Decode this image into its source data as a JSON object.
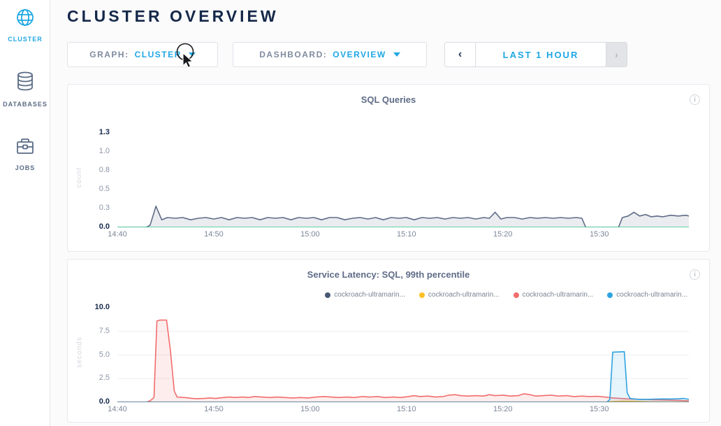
{
  "sidebar": {
    "items": [
      {
        "label": "CLUSTER",
        "icon": "globe-icon",
        "active": true
      },
      {
        "label": "DATABASES",
        "icon": "database-icon",
        "active": false
      },
      {
        "label": "JOBS",
        "icon": "briefcase-icon",
        "active": false
      }
    ]
  },
  "header": {
    "title": "CLUSTER OVERVIEW"
  },
  "controls": {
    "graph": {
      "label": "GRAPH:",
      "value": "CLUSTER"
    },
    "dashboard": {
      "label": "DASHBOARD:",
      "value": "OVERVIEW"
    },
    "timerange": {
      "prev": "‹",
      "label": "LAST 1 HOUR",
      "next": "›",
      "next_disabled": true
    }
  },
  "colors": {
    "accent_blue": "#1ea7e5",
    "navy": "#152849",
    "label_gray": "#7f8b9e",
    "panel_border": "#e7e9ed",
    "chart1_line": "#5f6c87",
    "chart1_zero_line": "#35c98e",
    "chart2_zero_line": "#5b7f9d",
    "series_slate": "#475872",
    "series_yellow": "#fdc028",
    "series_red": "#f26d6d",
    "series_blue": "#2fa3e0"
  },
  "chart_data": [
    {
      "type": "area",
      "title": "SQL Queries",
      "ylabel": "count",
      "xlim": [
        0,
        59.3
      ],
      "ylim": [
        0,
        1.25
      ],
      "grid": false,
      "zero_line_color": "#35c98e",
      "x_ticks": [
        {
          "value": 0,
          "label": "14:40"
        },
        {
          "value": 10,
          "label": "14:50"
        },
        {
          "value": 20,
          "label": "15:00"
        },
        {
          "value": 30,
          "label": "15:10"
        },
        {
          "value": 40,
          "label": "15:20"
        },
        {
          "value": 50,
          "label": "15:30"
        }
      ],
      "y_ticks": [
        {
          "value": 0,
          "label": "0.0",
          "bold": true
        },
        {
          "value": 0.25,
          "label": "0.3",
          "bold": false
        },
        {
          "value": 0.5,
          "label": "0.5",
          "bold": false
        },
        {
          "value": 0.75,
          "label": "0.8",
          "bold": false
        },
        {
          "value": 1.0,
          "label": "1.0",
          "bold": false
        },
        {
          "value": 1.25,
          "label": "1.3",
          "bold": true
        }
      ],
      "series": [
        {
          "color": "#5f6c87",
          "fill": "rgba(95,108,135,0.13)",
          "points": [
            [
              0,
              0
            ],
            [
              3,
              0
            ],
            [
              3.4,
              0.03
            ],
            [
              4,
              0.28
            ],
            [
              4.6,
              0.1
            ],
            [
              5.2,
              0.13
            ],
            [
              6,
              0.12
            ],
            [
              6.8,
              0.13
            ],
            [
              7.6,
              0.1
            ],
            [
              8.4,
              0.12
            ],
            [
              9.2,
              0.13
            ],
            [
              10,
              0.11
            ],
            [
              10.8,
              0.13
            ],
            [
              11.6,
              0.1
            ],
            [
              12.4,
              0.13
            ],
            [
              13.2,
              0.12
            ],
            [
              14,
              0.13
            ],
            [
              14.8,
              0.1
            ],
            [
              15.6,
              0.13
            ],
            [
              16.4,
              0.12
            ],
            [
              17.2,
              0.13
            ],
            [
              18,
              0.1
            ],
            [
              18.8,
              0.13
            ],
            [
              19.6,
              0.12
            ],
            [
              20.4,
              0.13
            ],
            [
              21.2,
              0.1
            ],
            [
              22,
              0.13
            ],
            [
              22.8,
              0.13
            ],
            [
              23.6,
              0.1
            ],
            [
              24.4,
              0.12
            ],
            [
              25.2,
              0.13
            ],
            [
              26,
              0.11
            ],
            [
              26.8,
              0.13
            ],
            [
              27.6,
              0.1
            ],
            [
              28.4,
              0.13
            ],
            [
              29.2,
              0.12
            ],
            [
              30,
              0.13
            ],
            [
              30.8,
              0.1
            ],
            [
              31.6,
              0.13
            ],
            [
              32.4,
              0.12
            ],
            [
              33.2,
              0.13
            ],
            [
              34,
              0.11
            ],
            [
              34.8,
              0.13
            ],
            [
              35.6,
              0.12
            ],
            [
              36.4,
              0.13
            ],
            [
              37.2,
              0.11
            ],
            [
              38,
              0.13
            ],
            [
              38.6,
              0.12
            ],
            [
              39.2,
              0.2
            ],
            [
              39.8,
              0.11
            ],
            [
              40.4,
              0.13
            ],
            [
              41.2,
              0.13
            ],
            [
              42,
              0.11
            ],
            [
              42.8,
              0.13
            ],
            [
              43.6,
              0.12
            ],
            [
              44.4,
              0.13
            ],
            [
              45.2,
              0.12
            ],
            [
              46,
              0.13
            ],
            [
              46.8,
              0.12
            ],
            [
              47.6,
              0.13
            ],
            [
              48.2,
              0.12
            ],
            [
              48.6,
              0
            ],
            [
              52,
              0
            ],
            [
              52.4,
              0.13
            ],
            [
              53,
              0.15
            ],
            [
              53.6,
              0.2
            ],
            [
              54.2,
              0.15
            ],
            [
              54.8,
              0.17
            ],
            [
              55.4,
              0.14
            ],
            [
              56,
              0.15
            ],
            [
              56.6,
              0.14
            ],
            [
              57.4,
              0.16
            ],
            [
              58.2,
              0.15
            ],
            [
              59,
              0.16
            ],
            [
              59.3,
              0.15
            ]
          ]
        }
      ]
    },
    {
      "type": "area",
      "title": "Service Latency: SQL, 99th percentile",
      "ylabel": "seconds",
      "xlim": [
        0,
        59.3
      ],
      "ylim": [
        0,
        10
      ],
      "grid": true,
      "zero_line_color": "#5b7f9d",
      "legend": [
        {
          "label": "cockroach-ultramarin...",
          "color": "#475872"
        },
        {
          "label": "cockroach-ultramarin...",
          "color": "#fdc028"
        },
        {
          "label": "cockroach-ultramarin...",
          "color": "#f26d6d"
        },
        {
          "label": "cockroach-ultramarin...",
          "color": "#2fa3e0"
        }
      ],
      "x_ticks": [
        {
          "value": 0,
          "label": "14:40"
        },
        {
          "value": 10,
          "label": "14:50"
        },
        {
          "value": 20,
          "label": "15:00"
        },
        {
          "value": 30,
          "label": "15:10"
        },
        {
          "value": 40,
          "label": "15:20"
        },
        {
          "value": 50,
          "label": "15:30"
        }
      ],
      "y_ticks": [
        {
          "value": 0,
          "label": "0.0",
          "bold": true
        },
        {
          "value": 2.5,
          "label": "2.5",
          "bold": false
        },
        {
          "value": 5.0,
          "label": "5.0",
          "bold": false
        },
        {
          "value": 7.5,
          "label": "7.5",
          "bold": false
        },
        {
          "value": 10.0,
          "label": "10.0",
          "bold": true
        }
      ],
      "series": [
        {
          "name": "cockroach-ultramarin...",
          "color": "#475872",
          "fill": "rgba(71,88,114,0.0)",
          "points": [
            [
              0,
              0
            ],
            [
              59.3,
              0
            ]
          ]
        },
        {
          "name": "cockroach-ultramarin...",
          "color": "#fdc028",
          "fill": "rgba(253,192,40,0.12)",
          "points": [
            [
              0,
              0
            ],
            [
              50.5,
              0
            ],
            [
              51.5,
              0.08
            ],
            [
              52.5,
              0.12
            ],
            [
              53.5,
              0.1
            ],
            [
              54.5,
              0.07
            ],
            [
              55.5,
              0.04
            ],
            [
              56.5,
              0.02
            ],
            [
              59.3,
              0.02
            ]
          ]
        },
        {
          "name": "cockroach-ultramarin...",
          "color": "#f26d6d",
          "fill": "rgba(242,109,109,0.12)",
          "points": [
            [
              0,
              0
            ],
            [
              3,
              0
            ],
            [
              3.4,
              0.15
            ],
            [
              3.8,
              0.5
            ],
            [
              4.1,
              8.6
            ],
            [
              4.4,
              8.7
            ],
            [
              5.1,
              8.7
            ],
            [
              5.5,
              5.5
            ],
            [
              5.9,
              1.2
            ],
            [
              6.2,
              0.55
            ],
            [
              7,
              0.5
            ],
            [
              7.6,
              0.42
            ],
            [
              8.2,
              0.38
            ],
            [
              9,
              0.4
            ],
            [
              9.6,
              0.45
            ],
            [
              10.2,
              0.4
            ],
            [
              11,
              0.5
            ],
            [
              11.6,
              0.55
            ],
            [
              12.2,
              0.5
            ],
            [
              13,
              0.55
            ],
            [
              13.6,
              0.5
            ],
            [
              14.2,
              0.6
            ],
            [
              15,
              0.55
            ],
            [
              15.8,
              0.5
            ],
            [
              16.6,
              0.55
            ],
            [
              17.4,
              0.5
            ],
            [
              18.2,
              0.45
            ],
            [
              19,
              0.5
            ],
            [
              19.8,
              0.45
            ],
            [
              20.6,
              0.55
            ],
            [
              21.4,
              0.6
            ],
            [
              22.2,
              0.55
            ],
            [
              23,
              0.5
            ],
            [
              23.8,
              0.55
            ],
            [
              24.6,
              0.5
            ],
            [
              25.4,
              0.6
            ],
            [
              26.2,
              0.55
            ],
            [
              27,
              0.6
            ],
            [
              27.8,
              0.5
            ],
            [
              28.6,
              0.55
            ],
            [
              29.4,
              0.5
            ],
            [
              30.2,
              0.6
            ],
            [
              30.8,
              0.7
            ],
            [
              31.4,
              0.6
            ],
            [
              32.2,
              0.65
            ],
            [
              33,
              0.55
            ],
            [
              33.8,
              0.6
            ],
            [
              34.4,
              0.75
            ],
            [
              35,
              0.8
            ],
            [
              35.6,
              0.7
            ],
            [
              36.4,
              0.65
            ],
            [
              37.2,
              0.7
            ],
            [
              38,
              0.65
            ],
            [
              38.6,
              0.8
            ],
            [
              39.2,
              0.7
            ],
            [
              40,
              0.75
            ],
            [
              40.8,
              0.65
            ],
            [
              41.6,
              0.7
            ],
            [
              42.2,
              0.9
            ],
            [
              42.8,
              0.8
            ],
            [
              43.4,
              0.65
            ],
            [
              44.2,
              0.7
            ],
            [
              45,
              0.75
            ],
            [
              45.8,
              0.65
            ],
            [
              46.6,
              0.7
            ],
            [
              47.4,
              0.6
            ],
            [
              48.2,
              0.65
            ],
            [
              49,
              0.6
            ],
            [
              49.8,
              0.62
            ],
            [
              50.6,
              0.55
            ],
            [
              51.4,
              0.45
            ],
            [
              52.2,
              0.4
            ],
            [
              53,
              0.35
            ],
            [
              54,
              0.32
            ],
            [
              55,
              0.28
            ],
            [
              56,
              0.25
            ],
            [
              57,
              0.22
            ],
            [
              58,
              0.2
            ],
            [
              59.3,
              0.15
            ]
          ]
        },
        {
          "name": "cockroach-ultramarin...",
          "color": "#2fa3e0",
          "fill": "rgba(47,163,224,0.12)",
          "points": [
            [
              0,
              0
            ],
            [
              50.8,
              0
            ],
            [
              51.1,
              0.3
            ],
            [
              51.4,
              5.3
            ],
            [
              52.6,
              5.35
            ],
            [
              52.9,
              1.0
            ],
            [
              53.2,
              0.4
            ],
            [
              54,
              0.3
            ],
            [
              55,
              0.3
            ],
            [
              55.8,
              0.33
            ],
            [
              56.6,
              0.35
            ],
            [
              57.4,
              0.34
            ],
            [
              58.2,
              0.36
            ],
            [
              58.8,
              0.4
            ],
            [
              59.3,
              0.3
            ]
          ]
        }
      ]
    }
  ]
}
